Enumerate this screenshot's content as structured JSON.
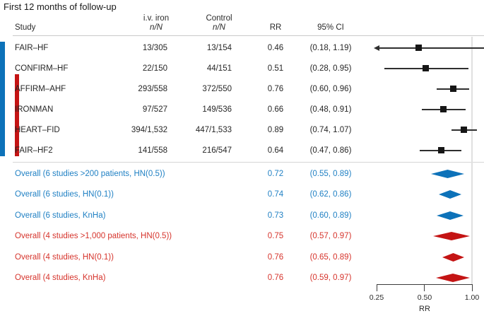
{
  "title": "First 12 months of follow-up",
  "header": {
    "study": "Study",
    "iv_iron_line1": "i.v. iron",
    "iv_iron_line2": "n/N",
    "control_line1": "Control",
    "control_line2": "n/N",
    "rr": "RR",
    "ci": "95% CI"
  },
  "axis": {
    "ticks": [
      "0.25",
      "0.50",
      "1.00"
    ],
    "tick_values": [
      0.25,
      0.5,
      1.0
    ],
    "xlabel": "RR",
    "scale": "log2"
  },
  "colors": {
    "blue_text": "#2181c4",
    "red_text": "#d6342c",
    "blue_shape": "#0d72b9",
    "red_shape": "#c41414",
    "line": "#2f2f2f",
    "marker": "#161616",
    "black_text": "#262626"
  },
  "chart_data": {
    "type": "forest",
    "title": "First 12 months of follow-up",
    "xlabel": "RR",
    "x_scale": "log",
    "x_ticks": [
      0.25,
      0.5,
      1.0
    ],
    "reference_line": 1.0,
    "studies": [
      {
        "study": "FAIR–HF",
        "iv_iron_nN": "13/305",
        "control_nN": "13/154",
        "rr": 0.46,
        "ci_low": 0.18,
        "ci_high": 1.19,
        "rr_label": "0.46",
        "ci_label": "(0.18, 1.19)"
      },
      {
        "study": "CONFIRM–HF",
        "iv_iron_nN": "22/150",
        "control_nN": "44/151",
        "rr": 0.51,
        "ci_low": 0.28,
        "ci_high": 0.95,
        "rr_label": "0.51",
        "ci_label": "(0.28, 0.95)"
      },
      {
        "study": "AFFIRM–AHF",
        "iv_iron_nN": "293/558",
        "control_nN": "372/550",
        "rr": 0.76,
        "ci_low": 0.6,
        "ci_high": 0.96,
        "rr_label": "0.76",
        "ci_label": "(0.60, 0.96)"
      },
      {
        "study": "IRONMAN",
        "iv_iron_nN": "97/527",
        "control_nN": "149/536",
        "rr": 0.66,
        "ci_low": 0.48,
        "ci_high": 0.91,
        "rr_label": "0.66",
        "ci_label": "(0.48, 0.91)"
      },
      {
        "study": "HEART–FID",
        "iv_iron_nN": "394/1,532",
        "control_nN": "447/1,533",
        "rr": 0.89,
        "ci_low": 0.74,
        "ci_high": 1.07,
        "rr_label": "0.89",
        "ci_label": "(0.74, 1.07)"
      },
      {
        "study": "FAIR–HF2",
        "iv_iron_nN": "141/558",
        "control_nN": "216/547",
        "rr": 0.64,
        "ci_low": 0.47,
        "ci_high": 0.86,
        "rr_label": "0.64",
        "ci_label": "(0.47, 0.86)"
      }
    ],
    "overalls": [
      {
        "label": "Overall (6 studies >200 patients, HN(0.5))",
        "rr": 0.72,
        "ci_low": 0.55,
        "ci_high": 0.89,
        "rr_label": "0.72",
        "ci_label": "(0.55, 0.89)",
        "group": "blue"
      },
      {
        "label": "Overall (6 studies, HN(0.1))",
        "rr": 0.74,
        "ci_low": 0.62,
        "ci_high": 0.86,
        "rr_label": "0.74",
        "ci_label": "(0.62, 0.86)",
        "group": "blue"
      },
      {
        "label": "Overall (6 studies, KnHa)",
        "rr": 0.73,
        "ci_low": 0.6,
        "ci_high": 0.89,
        "rr_label": "0.73",
        "ci_label": "(0.60, 0.89)",
        "group": "blue"
      },
      {
        "label": "Overall (4 studies >1,000 patients, HN(0.5))",
        "rr": 0.75,
        "ci_low": 0.57,
        "ci_high": 0.97,
        "rr_label": "0.75",
        "ci_label": "(0.57, 0.97)",
        "group": "red"
      },
      {
        "label": "Overall (4 studies, HN(0.1))",
        "rr": 0.76,
        "ci_low": 0.65,
        "ci_high": 0.89,
        "rr_label": "0.76",
        "ci_label": "(0.65, 0.89)",
        "group": "red"
      },
      {
        "label": "Overall (4 studies, KnHa)",
        "rr": 0.76,
        "ci_low": 0.59,
        "ci_high": 0.97,
        "rr_label": "0.76",
        "ci_label": "(0.59, 0.97)",
        "group": "red"
      }
    ],
    "group_bars": [
      {
        "group": "blue",
        "covers": "all 6 studies"
      },
      {
        "group": "red",
        "covers": "last 4 studies (AFFIRM–AHF to FAIR–HF2)"
      }
    ]
  }
}
